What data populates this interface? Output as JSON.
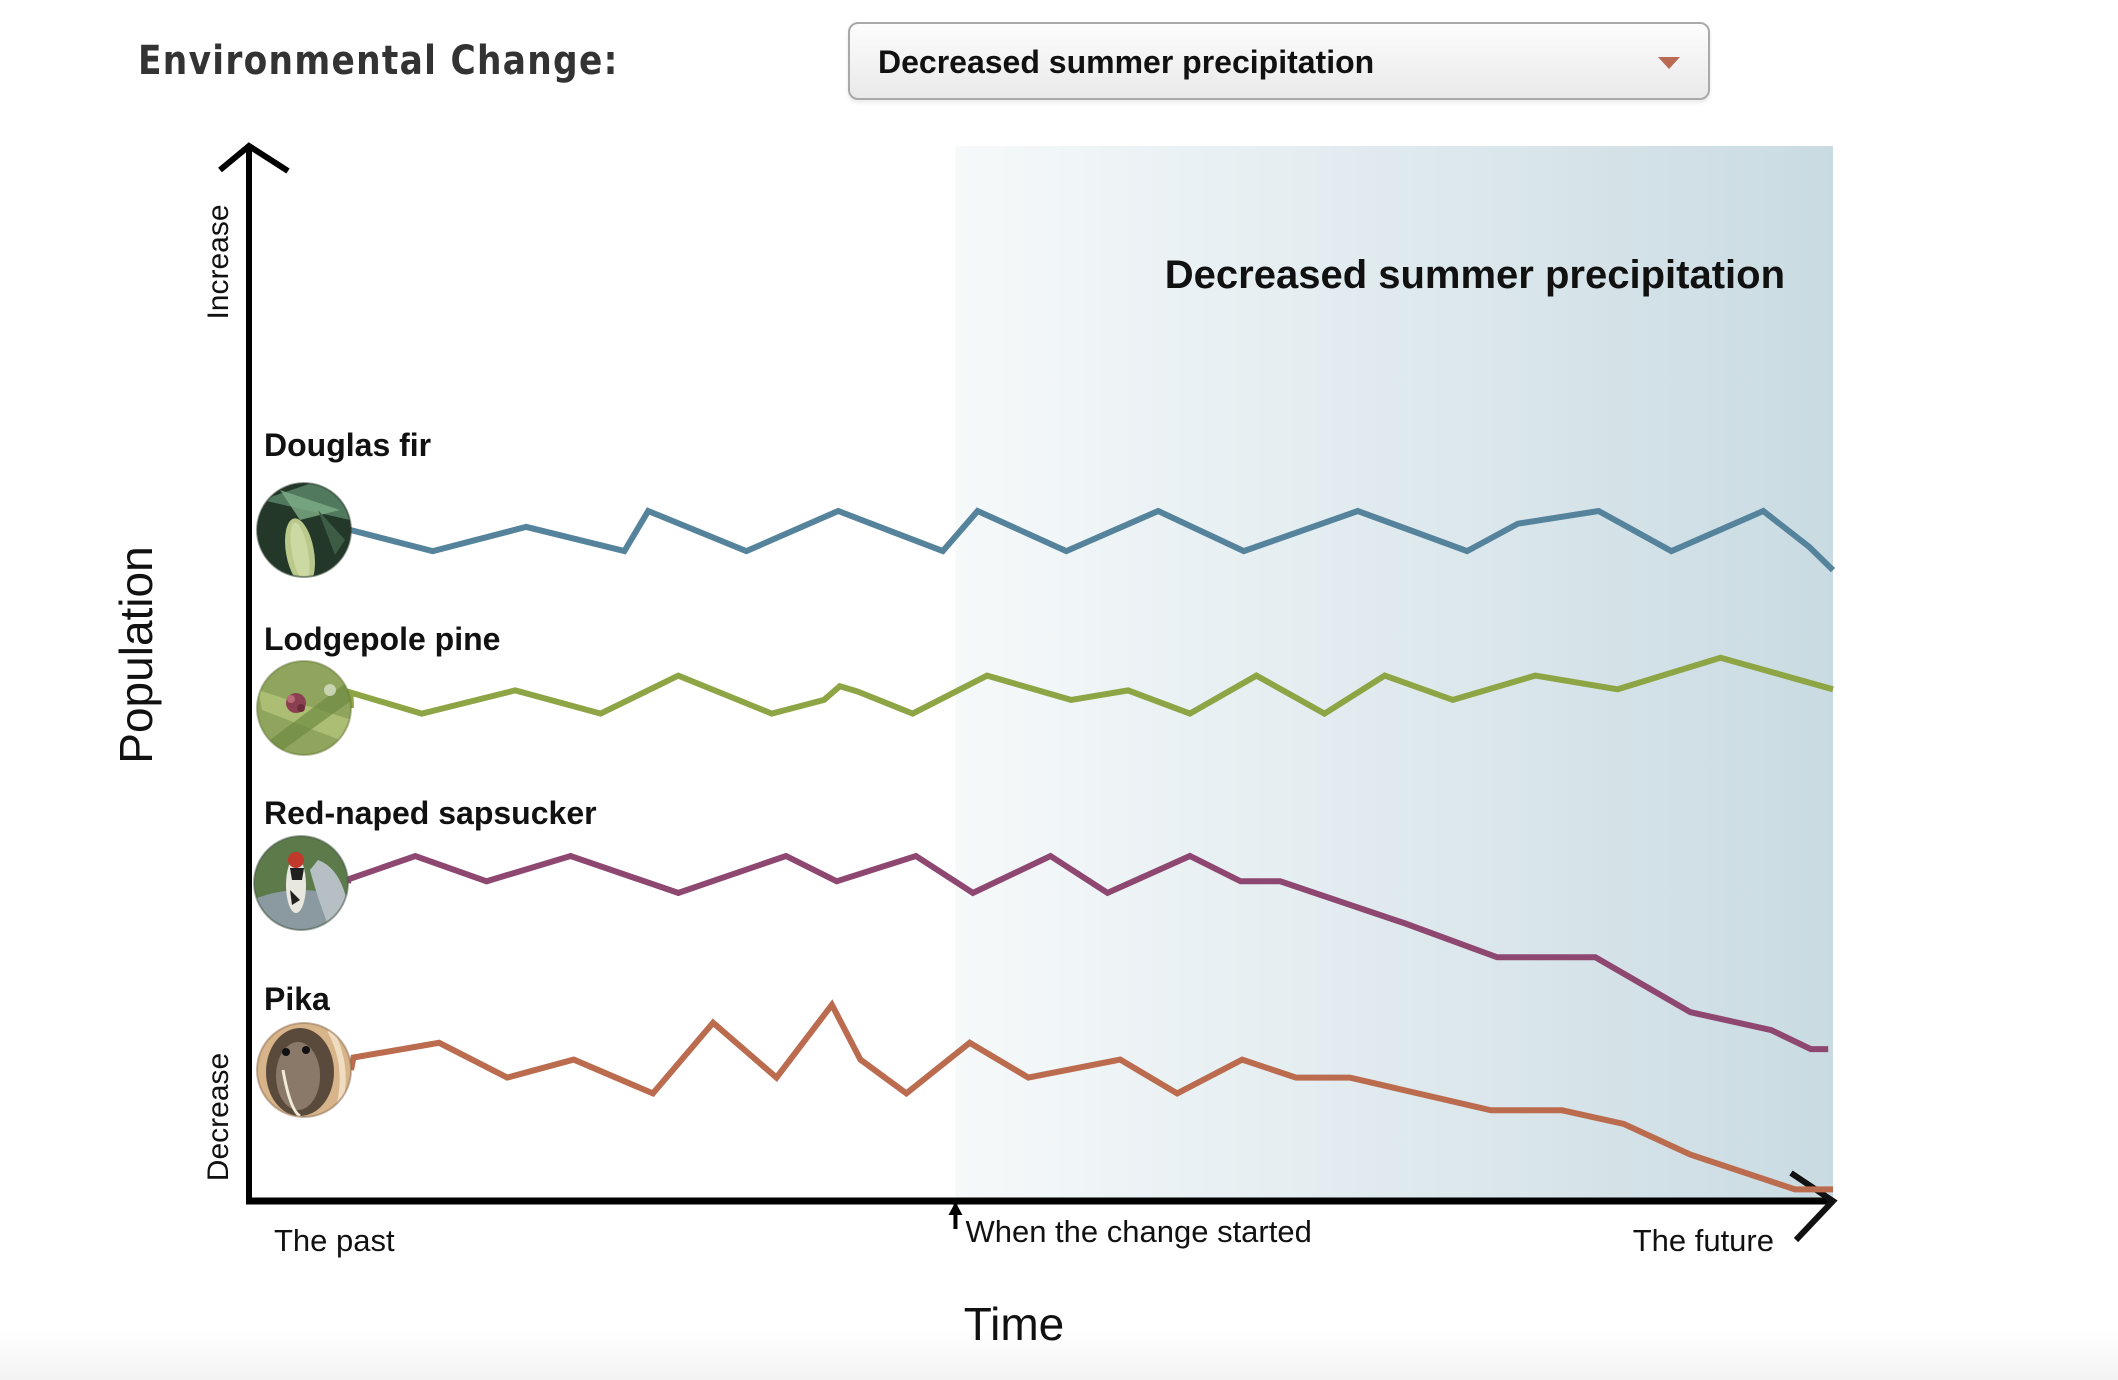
{
  "header": {
    "label": "Environmental Change:",
    "dropdown": {
      "selected": "Decreased summer precipitation",
      "caret_icon": "triangle-down",
      "caret_color": "#b86a52"
    }
  },
  "chart_data": {
    "type": "line",
    "title": "Decreased summer precipitation",
    "xlabel": "Time",
    "ylabel": "Population",
    "y_ticks": {
      "top": "Increase",
      "bottom": "Decrease"
    },
    "x_ticks": {
      "start": "The past",
      "change": "When the change started",
      "end": "The future"
    },
    "xlim": [
      0,
      100
    ],
    "ylim": [
      0,
      100
    ],
    "change_start_x": 44.6,
    "shaded_region": {
      "from_x": 44.6,
      "to_x": 100,
      "color_start": "#f6f9fa",
      "color_end": "#c9dbe2"
    },
    "grid": false,
    "legend": "inline-left",
    "series": [
      {
        "name": "Douglas fir",
        "color": "#55839c",
        "icon": "douglas-fir-photo",
        "points": [
          [
            6.4,
            63.6
          ],
          [
            11.6,
            61.6
          ],
          [
            17.5,
            63.9
          ],
          [
            23.7,
            61.6
          ],
          [
            25.2,
            65.4
          ],
          [
            31.4,
            61.6
          ],
          [
            37.2,
            65.4
          ],
          [
            43.8,
            61.6
          ],
          [
            46.0,
            65.4
          ],
          [
            51.6,
            61.6
          ],
          [
            57.4,
            65.4
          ],
          [
            62.8,
            61.6
          ],
          [
            70.0,
            65.4
          ],
          [
            76.9,
            61.6
          ],
          [
            80.1,
            64.2
          ],
          [
            85.2,
            65.4
          ],
          [
            89.8,
            61.6
          ],
          [
            95.6,
            65.4
          ],
          [
            98.5,
            62.0
          ],
          [
            100,
            59.8
          ]
        ]
      },
      {
        "name": "Lodgepole pine",
        "color": "#8da544",
        "icon": "lodgepole-pine-photo",
        "points": [
          [
            6.4,
            48.2
          ],
          [
            10.9,
            46.2
          ],
          [
            16.8,
            48.4
          ],
          [
            22.2,
            46.2
          ],
          [
            27.1,
            49.8
          ],
          [
            33.0,
            46.2
          ],
          [
            36.3,
            47.5
          ],
          [
            37.3,
            48.8
          ],
          [
            38.4,
            48.3
          ],
          [
            41.9,
            46.2
          ],
          [
            46.6,
            49.8
          ],
          [
            51.9,
            47.5
          ],
          [
            55.5,
            48.4
          ],
          [
            59.4,
            46.2
          ],
          [
            63.6,
            49.8
          ],
          [
            67.9,
            46.2
          ],
          [
            71.7,
            49.8
          ],
          [
            76.0,
            47.5
          ],
          [
            81.2,
            49.8
          ],
          [
            86.4,
            48.5
          ],
          [
            92.9,
            51.5
          ],
          [
            100,
            48.5
          ]
        ]
      },
      {
        "name": "Red-naped sapsucker",
        "color": "#8d4770",
        "icon": "sapsucker-photo",
        "points": [
          [
            6.3,
            30.5
          ],
          [
            10.5,
            32.7
          ],
          [
            15.0,
            30.3
          ],
          [
            20.3,
            32.7
          ],
          [
            27.1,
            29.2
          ],
          [
            33.9,
            32.7
          ],
          [
            37.1,
            30.3
          ],
          [
            42.1,
            32.7
          ],
          [
            45.7,
            29.2
          ],
          [
            50.6,
            32.7
          ],
          [
            54.2,
            29.2
          ],
          [
            59.4,
            32.7
          ],
          [
            62.6,
            30.3
          ],
          [
            65.1,
            30.3
          ],
          [
            73.0,
            26.3
          ],
          [
            78.8,
            23.1
          ],
          [
            85.0,
            23.1
          ],
          [
            91.0,
            17.9
          ],
          [
            96.1,
            16.2
          ],
          [
            98.6,
            14.4
          ],
          [
            99.7,
            14.4
          ]
        ]
      },
      {
        "name": "Pika",
        "color": "#bb6b4e",
        "icon": "pika-photo",
        "points": [
          [
            6.6,
            13.6
          ],
          [
            12.0,
            15.0
          ],
          [
            16.3,
            11.7
          ],
          [
            20.5,
            13.4
          ],
          [
            25.5,
            10.2
          ],
          [
            29.3,
            16.9
          ],
          [
            33.3,
            11.7
          ],
          [
            36.8,
            18.6
          ],
          [
            38.6,
            13.4
          ],
          [
            41.5,
            10.2
          ],
          [
            45.5,
            15.0
          ],
          [
            49.2,
            11.7
          ],
          [
            55.0,
            13.4
          ],
          [
            58.6,
            10.2
          ],
          [
            62.7,
            13.4
          ],
          [
            66.1,
            11.7
          ],
          [
            69.5,
            11.7
          ],
          [
            78.4,
            8.6
          ],
          [
            82.9,
            8.6
          ],
          [
            86.8,
            7.3
          ],
          [
            91.0,
            4.4
          ],
          [
            97.6,
            1.1
          ],
          [
            100,
            1.1
          ]
        ]
      }
    ]
  }
}
